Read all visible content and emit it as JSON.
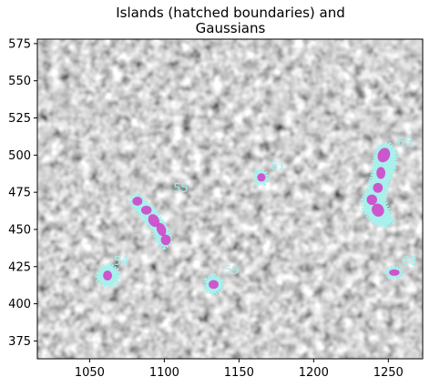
{
  "chart_data": {
    "type": "scatter",
    "title_lines": [
      "Islands (hatched boundaries) and",
      "Gaussians"
    ],
    "xlabel": "",
    "ylabel": "",
    "xlim": [
      1015,
      1273
    ],
    "ylim": [
      363,
      578
    ],
    "xticks": [
      1050,
      1100,
      1150,
      1200,
      1250
    ],
    "yticks": [
      375,
      400,
      425,
      450,
      475,
      500,
      525,
      550,
      575
    ],
    "background": "grayscale noise image",
    "grid": false,
    "colors": {
      "island_outline": "#a8f0ec",
      "gaussian_fill": "#d23cc8",
      "label": "#9ff0f0"
    },
    "islands": [
      {
        "id": "54",
        "label": "54",
        "boundary": [
          [
            1056,
            420
          ],
          [
            1059,
            425
          ],
          [
            1064,
            426
          ],
          [
            1069,
            422
          ],
          [
            1069,
            416
          ],
          [
            1065,
            412
          ],
          [
            1059,
            413
          ],
          [
            1055,
            417
          ]
        ],
        "label_pos": [
          1066,
          426
        ],
        "gaussians": [
          {
            "x": 1062,
            "y": 419,
            "rx": 3.0,
            "ry": 3.3,
            "angle": 0
          }
        ]
      },
      {
        "id": "55",
        "label": "55",
        "boundary": [
          [
            1078,
            471
          ],
          [
            1082,
            473
          ],
          [
            1088,
            468
          ],
          [
            1093,
            463
          ],
          [
            1098,
            456
          ],
          [
            1103,
            448
          ],
          [
            1104,
            441
          ],
          [
            1100,
            438
          ],
          [
            1096,
            441
          ],
          [
            1093,
            449
          ],
          [
            1088,
            455
          ],
          [
            1083,
            461
          ],
          [
            1079,
            466
          ]
        ],
        "label_pos": [
          1106,
          475
        ],
        "gaussians": [
          {
            "x": 1082,
            "y": 469,
            "rx": 3.3,
            "ry": 3.0,
            "angle": 0
          },
          {
            "x": 1088,
            "y": 463,
            "rx": 3.5,
            "ry": 3.0,
            "angle": 0
          },
          {
            "x": 1093,
            "y": 456,
            "rx": 3.5,
            "ry": 4.5,
            "angle": -30
          },
          {
            "x": 1098,
            "y": 450,
            "rx": 3.0,
            "ry": 4.5,
            "angle": -20
          },
          {
            "x": 1101,
            "y": 443,
            "rx": 3.3,
            "ry": 3.5,
            "angle": 0
          }
        ]
      },
      {
        "id": "59",
        "label": "59",
        "boundary": [
          [
            1128,
            410
          ],
          [
            1128,
            416
          ],
          [
            1133,
            419
          ],
          [
            1138,
            416
          ],
          [
            1138,
            410
          ],
          [
            1133,
            407
          ]
        ],
        "label_pos": [
          1140,
          420
        ],
        "gaussians": [
          {
            "x": 1133,
            "y": 413,
            "rx": 3.3,
            "ry": 3.0,
            "angle": 0
          }
        ]
      },
      {
        "id": "61",
        "label": "61",
        "boundary": [
          [
            1161,
            485
          ],
          [
            1162,
            489
          ],
          [
            1167,
            489
          ],
          [
            1169,
            484
          ],
          [
            1167,
            481
          ],
          [
            1162,
            481
          ]
        ],
        "label_pos": [
          1171,
          490
        ],
        "gaussians": [
          {
            "x": 1165,
            "y": 485,
            "rx": 2.8,
            "ry": 2.8,
            "angle": 0
          }
        ]
      },
      {
        "id": "65",
        "label": "65",
        "boundary": [
          [
            1243,
            505
          ],
          [
            1250,
            508
          ],
          [
            1255,
            502
          ],
          [
            1254,
            492
          ],
          [
            1250,
            482
          ],
          [
            1247,
            470
          ],
          [
            1250,
            463
          ],
          [
            1253,
            455
          ],
          [
            1248,
            452
          ],
          [
            1240,
            455
          ],
          [
            1234,
            462
          ],
          [
            1233,
            470
          ],
          [
            1237,
            478
          ],
          [
            1240,
            488
          ],
          [
            1241,
            497
          ]
        ],
        "label_pos": [
          1256,
          506
        ],
        "gaussians": [
          {
            "x": 1247,
            "y": 500,
            "rx": 4.0,
            "ry": 5.0,
            "angle": 25
          },
          {
            "x": 1245,
            "y": 488,
            "rx": 3.0,
            "ry": 4.0,
            "angle": 0
          },
          {
            "x": 1243,
            "y": 478,
            "rx": 3.3,
            "ry": 3.3,
            "angle": 0
          },
          {
            "x": 1239,
            "y": 470,
            "rx": 3.5,
            "ry": 3.5,
            "angle": 0
          },
          {
            "x": 1243,
            "y": 463,
            "rx": 4.0,
            "ry": 4.5,
            "angle": -30
          }
        ]
      },
      {
        "id": "68",
        "label": "68",
        "boundary": [
          [
            1249,
            421
          ],
          [
            1251,
            424
          ],
          [
            1257,
            424
          ],
          [
            1259,
            420
          ],
          [
            1256,
            418
          ],
          [
            1251,
            418
          ]
        ],
        "label_pos": [
          1259,
          426
        ],
        "gaussians": [
          {
            "x": 1254,
            "y": 421,
            "rx": 3.5,
            "ry": 2.2,
            "angle": 0
          }
        ]
      }
    ]
  }
}
